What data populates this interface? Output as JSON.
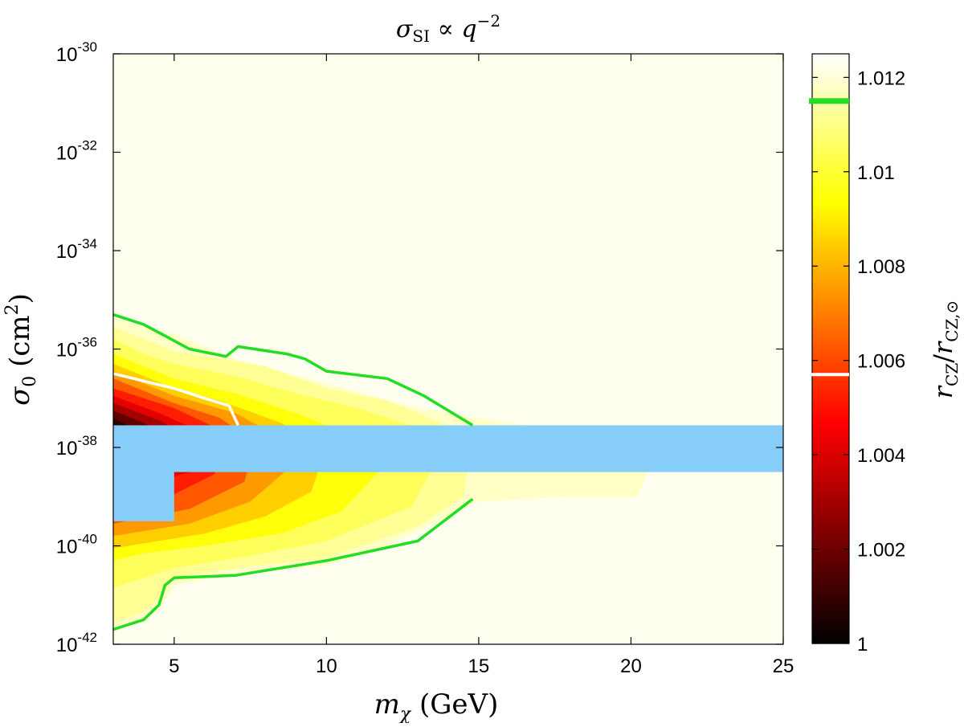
{
  "chart_data": {
    "type": "heatmap",
    "title": "σ_SI ∝ q^−2",
    "title_parts": {
      "sym": "σ",
      "sub": "SI",
      "prop": " ∝ ",
      "q": "q",
      "sup": "−2"
    },
    "xlabel": "m_χ (GeV)",
    "xlabel_parts": {
      "sym": "m",
      "sub": "χ",
      "rest": " (GeV)"
    },
    "ylabel": "σ_0 (cm²)",
    "ylabel_parts": {
      "sym": "σ",
      "sub": "0",
      "rest": " (cm",
      "sup": "2",
      "close": ")"
    },
    "xlim": [
      3,
      25
    ],
    "ylim_log10": [
      -42,
      -30
    ],
    "x_ticks": [
      {
        "v": 5,
        "label": "5"
      },
      {
        "v": 10,
        "label": "10"
      },
      {
        "v": 15,
        "label": "15"
      },
      {
        "v": 20,
        "label": "20"
      },
      {
        "v": 25,
        "label": "25"
      }
    ],
    "y_ticks": [
      {
        "v": -42,
        "base": "10",
        "exp": "-42"
      },
      {
        "v": -40,
        "base": "10",
        "exp": "-40"
      },
      {
        "v": -38,
        "base": "10",
        "exp": "-38"
      },
      {
        "v": -36,
        "base": "10",
        "exp": "-36"
      },
      {
        "v": -34,
        "base": "10",
        "exp": "-34"
      },
      {
        "v": -32,
        "base": "10",
        "exp": "-32"
      },
      {
        "v": -30,
        "base": "10",
        "exp": "-30"
      }
    ],
    "colorbar": {
      "label": "r_CZ / r_CZ,⊙",
      "label_parts": {
        "num": "r",
        "num_sub": "CZ",
        "slash": "/",
        "den": "r",
        "den_sub": "CZ,⊙"
      },
      "range": [
        1.0,
        1.0125
      ],
      "ticks": [
        {
          "v": 1.0,
          "label": "1"
        },
        {
          "v": 1.002,
          "label": "1.002"
        },
        {
          "v": 1.004,
          "label": "1.004"
        },
        {
          "v": 1.006,
          "label": "1.006"
        },
        {
          "v": 1.008,
          "label": "1.008"
        },
        {
          "v": 1.01,
          "label": "1.01"
        },
        {
          "v": 1.012,
          "label": "1.012"
        }
      ],
      "markers": [
        {
          "name": "green-contour-level",
          "v": 1.0115,
          "color": "#22dd22"
        },
        {
          "name": "white-contour-level",
          "v": 1.0057,
          "color": "#ffffff"
        }
      ]
    },
    "background_value": 1.0123,
    "filled_levels": [
      {
        "v": 1.0118,
        "points": [
          [
            3,
            -35.35
          ],
          [
            4,
            -35.55
          ],
          [
            5,
            -35.7
          ],
          [
            7,
            -36.2
          ],
          [
            10,
            -36.7
          ],
          [
            13,
            -37.2
          ],
          [
            16,
            -37.5
          ],
          [
            18,
            -37.65
          ],
          [
            20,
            -37.7
          ],
          [
            20.6,
            -38.4
          ],
          [
            20.2,
            -39.0
          ],
          [
            18,
            -39.0
          ],
          [
            15,
            -39.1
          ],
          [
            12,
            -40.0
          ],
          [
            10,
            -40.4
          ],
          [
            7,
            -40.55
          ],
          [
            5,
            -40.8
          ],
          [
            4.5,
            -41.3
          ],
          [
            4,
            -41.55
          ],
          [
            3,
            -41.7
          ]
        ]
      },
      {
        "v": 1.0112,
        "points": [
          [
            3,
            -35.55
          ],
          [
            4,
            -35.8
          ],
          [
            5,
            -36.05
          ],
          [
            6,
            -36.15
          ],
          [
            8,
            -36.35
          ],
          [
            10,
            -36.8
          ],
          [
            12,
            -37.05
          ],
          [
            13,
            -37.3
          ],
          [
            14.8,
            -37.8
          ],
          [
            14.5,
            -39.0
          ],
          [
            13.0,
            -39.6
          ],
          [
            10,
            -40.25
          ],
          [
            7,
            -40.45
          ],
          [
            5,
            -40.65
          ],
          [
            4.6,
            -41.0
          ],
          [
            4,
            -41.35
          ],
          [
            3,
            -41.55
          ]
        ]
      },
      {
        "v": 1.0105,
        "points": [
          [
            3,
            -35.8
          ],
          [
            4,
            -36.1
          ],
          [
            5,
            -36.3
          ],
          [
            7,
            -36.55
          ],
          [
            9,
            -36.9
          ],
          [
            11,
            -37.2
          ],
          [
            13,
            -37.6
          ],
          [
            14,
            -37.85
          ],
          [
            12.8,
            -39.2
          ],
          [
            10,
            -39.9
          ],
          [
            7.5,
            -40.2
          ],
          [
            5,
            -40.45
          ],
          [
            4,
            -40.65
          ],
          [
            3,
            -40.85
          ]
        ]
      },
      {
        "v": 1.0095,
        "points": [
          [
            3,
            -36.1
          ],
          [
            5,
            -36.6
          ],
          [
            7,
            -36.9
          ],
          [
            9,
            -37.3
          ],
          [
            11,
            -37.8
          ],
          [
            12,
            -38.3
          ],
          [
            10.5,
            -39.3
          ],
          [
            8.5,
            -39.75
          ],
          [
            6,
            -40.0
          ],
          [
            4,
            -40.15
          ],
          [
            3,
            -40.3
          ]
        ]
      },
      {
        "v": 1.0085,
        "points": [
          [
            3,
            -36.3
          ],
          [
            5,
            -36.8
          ],
          [
            6.5,
            -37.05
          ],
          [
            8.5,
            -37.5
          ],
          [
            10,
            -38.0
          ],
          [
            9.5,
            -38.9
          ],
          [
            8,
            -39.4
          ],
          [
            6,
            -39.75
          ],
          [
            4,
            -39.95
          ],
          [
            3,
            -40.05
          ]
        ]
      },
      {
        "v": 1.0075,
        "points": [
          [
            3,
            -36.45
          ],
          [
            5,
            -36.95
          ],
          [
            7,
            -37.3
          ],
          [
            8.5,
            -37.8
          ],
          [
            9,
            -38.3
          ],
          [
            7.5,
            -39.1
          ],
          [
            5.5,
            -39.55
          ],
          [
            3,
            -39.8
          ]
        ]
      },
      {
        "v": 1.0063,
        "points": [
          [
            3,
            -36.6
          ],
          [
            5,
            -37.1
          ],
          [
            6.5,
            -37.4
          ],
          [
            7.7,
            -37.9
          ],
          [
            7.3,
            -38.7
          ],
          [
            5.5,
            -39.25
          ],
          [
            3,
            -39.55
          ]
        ]
      },
      {
        "v": 1.0052,
        "points": [
          [
            3,
            -36.8
          ],
          [
            5,
            -37.2
          ],
          [
            6.2,
            -37.55
          ],
          [
            6.9,
            -37.9
          ],
          [
            6.3,
            -38.55
          ],
          [
            5,
            -38.95
          ],
          [
            3,
            -39.2
          ]
        ]
      },
      {
        "v": 1.0042,
        "points": [
          [
            3,
            -36.95
          ],
          [
            4.5,
            -37.3
          ],
          [
            5.6,
            -37.6
          ],
          [
            6.3,
            -37.95
          ],
          [
            5.5,
            -38.5
          ],
          [
            3,
            -38.95
          ]
        ]
      },
      {
        "v": 1.003,
        "points": [
          [
            3,
            -37.1
          ],
          [
            4.5,
            -37.45
          ],
          [
            5.3,
            -37.7
          ],
          [
            5.6,
            -38.0
          ],
          [
            5.0,
            -38.4
          ],
          [
            3,
            -38.7
          ]
        ]
      },
      {
        "v": 1.0018,
        "points": [
          [
            3,
            -37.25
          ],
          [
            4.0,
            -37.5
          ],
          [
            4.7,
            -37.75
          ],
          [
            4.9,
            -38.0
          ],
          [
            4.2,
            -38.3
          ],
          [
            3,
            -38.45
          ]
        ]
      },
      {
        "v": 1.0008,
        "points": [
          [
            3,
            -37.4
          ],
          [
            3.6,
            -37.6
          ],
          [
            4.0,
            -37.85
          ],
          [
            3.7,
            -38.1
          ],
          [
            3,
            -38.25
          ]
        ]
      }
    ],
    "contours": [
      {
        "name": "green-contour-upper",
        "color": "#22dd22",
        "points": [
          [
            3,
            -35.3
          ],
          [
            4,
            -35.5
          ],
          [
            4.6,
            -35.7
          ],
          [
            5.5,
            -36.0
          ],
          [
            6.7,
            -36.15
          ],
          [
            7.1,
            -35.95
          ],
          [
            8.7,
            -36.1
          ],
          [
            9.3,
            -36.2
          ],
          [
            10,
            -36.45
          ],
          [
            12,
            -36.6
          ],
          [
            13.2,
            -36.95
          ],
          [
            14.8,
            -37.55
          ]
        ]
      },
      {
        "name": "green-contour-lower",
        "color": "#22dd22",
        "points": [
          [
            3,
            -41.7
          ],
          [
            4,
            -41.5
          ],
          [
            4.5,
            -41.2
          ],
          [
            4.7,
            -40.8
          ],
          [
            5,
            -40.65
          ],
          [
            7,
            -40.6
          ],
          [
            10,
            -40.3
          ],
          [
            13,
            -39.9
          ],
          [
            14.8,
            -39.05
          ]
        ]
      },
      {
        "name": "white-contour",
        "color": "#ffffff",
        "points": [
          [
            3,
            -36.5
          ],
          [
            4,
            -36.65
          ],
          [
            5,
            -36.8
          ],
          [
            6,
            -37.0
          ],
          [
            6.8,
            -37.15
          ],
          [
            7.1,
            -37.55
          ]
        ]
      }
    ],
    "excluded_band": {
      "color": "#87cdf9",
      "top": -37.55,
      "bottom": -38.5,
      "left_notch": {
        "x_end": 5.0,
        "bottom": -39.5
      }
    }
  }
}
